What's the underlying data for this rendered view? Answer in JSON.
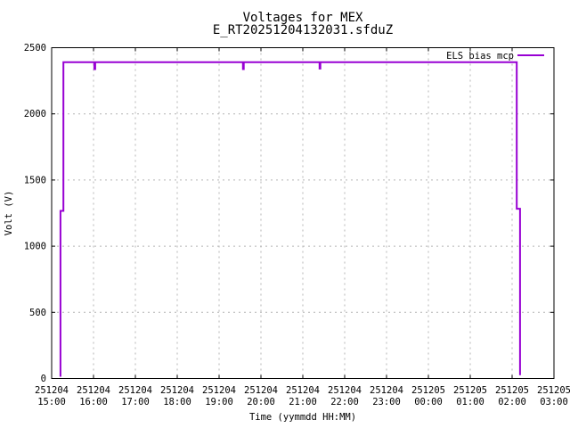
{
  "window": {
    "background": "#ffffff",
    "frame_color": "#000000",
    "grid_color": "#b4b4b4"
  },
  "chart_data": {
    "type": "line",
    "title": "Voltages for MEX",
    "subtitle": "E_RT20251204132031.sfduZ",
    "xlabel": "Time (yymmdd HH:MM)",
    "ylabel": "Volt (V)",
    "ylim": [
      0,
      2500
    ],
    "y_ticks": [
      0,
      500,
      1000,
      1500,
      2000,
      2500
    ],
    "xlim_hours": [
      0,
      12
    ],
    "x_unit": "hours after 251204 15:00",
    "x_ticks": [
      {
        "date": "251204",
        "time": "15:00"
      },
      {
        "date": "251204",
        "time": "16:00"
      },
      {
        "date": "251204",
        "time": "17:00"
      },
      {
        "date": "251204",
        "time": "18:00"
      },
      {
        "date": "251204",
        "time": "19:00"
      },
      {
        "date": "251204",
        "time": "20:00"
      },
      {
        "date": "251204",
        "time": "21:00"
      },
      {
        "date": "251204",
        "time": "22:00"
      },
      {
        "date": "251204",
        "time": "23:00"
      },
      {
        "date": "251205",
        "time": "00:00"
      },
      {
        "date": "251205",
        "time": "01:00"
      },
      {
        "date": "251205",
        "time": "02:00"
      },
      {
        "date": "251205",
        "time": "03:00"
      }
    ],
    "grid": true,
    "legend": {
      "position": "top-right",
      "entries": [
        {
          "label": "ELS bias mcp",
          "color": "#9800d3"
        }
      ]
    },
    "series": [
      {
        "name": "ELS bias mcp",
        "color": "#9800d3",
        "points_hours_volts": [
          [
            0.19,
            20
          ],
          [
            0.21,
            20
          ],
          [
            0.21,
            1267
          ],
          [
            0.28,
            1267
          ],
          [
            0.28,
            2390
          ],
          [
            1.02,
            2390
          ],
          [
            1.02,
            2338
          ],
          [
            1.04,
            2338
          ],
          [
            1.04,
            2390
          ],
          [
            4.57,
            2390
          ],
          [
            4.57,
            2338
          ],
          [
            4.59,
            2338
          ],
          [
            4.59,
            2390
          ],
          [
            6.4,
            2390
          ],
          [
            6.4,
            2342
          ],
          [
            6.42,
            2342
          ],
          [
            6.42,
            2390
          ],
          [
            11.11,
            2390
          ],
          [
            11.11,
            1283
          ],
          [
            11.19,
            1283
          ],
          [
            11.19,
            25
          ]
        ]
      }
    ]
  }
}
